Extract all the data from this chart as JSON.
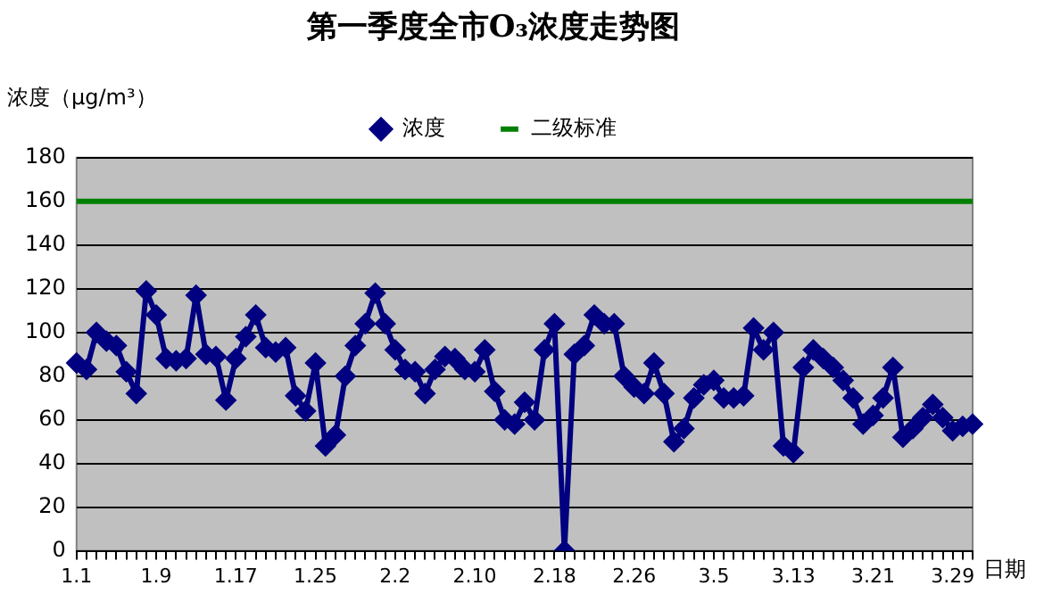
{
  "chart_data": {
    "type": "line",
    "title": "第一季度全市O₃浓度走势图",
    "ylabel": "浓度（μg/m³）",
    "xlabel": "日期",
    "categories": [
      "1.1",
      null,
      null,
      null,
      null,
      null,
      null,
      null,
      "1.9",
      null,
      null,
      null,
      null,
      null,
      null,
      null,
      "1.17",
      null,
      null,
      null,
      null,
      null,
      null,
      null,
      "1.25",
      null,
      null,
      null,
      null,
      null,
      null,
      null,
      "2.2",
      null,
      null,
      null,
      null,
      null,
      null,
      null,
      "2.10",
      null,
      null,
      null,
      null,
      null,
      null,
      null,
      "2.18",
      null,
      null,
      null,
      null,
      null,
      null,
      null,
      "2.26",
      null,
      null,
      null,
      null,
      null,
      null,
      null,
      "3.5",
      null,
      null,
      null,
      null,
      null,
      null,
      null,
      "3.13",
      null,
      null,
      null,
      null,
      null,
      null,
      null,
      "3.21",
      null,
      null,
      null,
      null,
      null,
      null,
      null,
      "3.29",
      null,
      null
    ],
    "series": [
      {
        "name": "浓度",
        "color": "#000080",
        "marker": "diamond",
        "values": [
          86,
          83,
          100,
          96,
          94,
          82,
          72,
          119,
          108,
          88,
          87,
          88,
          117,
          90,
          89,
          69,
          88,
          98,
          108,
          93,
          91,
          93,
          71,
          64,
          86,
          48,
          53,
          80,
          94,
          104,
          118,
          104,
          92,
          83,
          82,
          72,
          83,
          89,
          88,
          83,
          82,
          92,
          73,
          60,
          58,
          68,
          60,
          92,
          104,
          0,
          90,
          94,
          108,
          104,
          104,
          80,
          75,
          72,
          86,
          72,
          50,
          56,
          70,
          76,
          78,
          70,
          70,
          71,
          102,
          92,
          100,
          48,
          45,
          84,
          92,
          88,
          84,
          78,
          70,
          58,
          62,
          70,
          84,
          52,
          56,
          61,
          67,
          61,
          55,
          57,
          58
        ]
      },
      {
        "name": "二级标准",
        "color": "#008000",
        "marker": "none",
        "values": [
          160,
          160,
          160,
          160,
          160,
          160,
          160,
          160,
          160,
          160,
          160,
          160,
          160,
          160,
          160,
          160,
          160,
          160,
          160,
          160,
          160,
          160,
          160,
          160,
          160,
          160,
          160,
          160,
          160,
          160,
          160,
          160,
          160,
          160,
          160,
          160,
          160,
          160,
          160,
          160,
          160,
          160,
          160,
          160,
          160,
          160,
          160,
          160,
          160,
          160,
          160,
          160,
          160,
          160,
          160,
          160,
          160,
          160,
          160,
          160,
          160,
          160,
          160,
          160,
          160,
          160,
          160,
          160,
          160,
          160,
          160,
          160,
          160,
          160,
          160,
          160,
          160,
          160,
          160,
          160,
          160,
          160,
          160,
          160,
          160,
          160,
          160,
          160,
          160,
          160,
          160
        ]
      }
    ],
    "ylim": [
      0,
      180
    ],
    "yticks": [
      0,
      20,
      40,
      60,
      80,
      100,
      120,
      140,
      160,
      180
    ],
    "grid": "y",
    "legend": "top"
  }
}
